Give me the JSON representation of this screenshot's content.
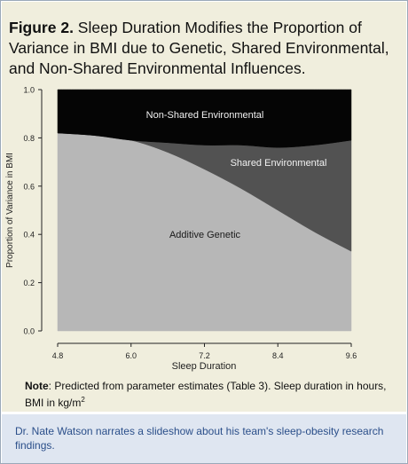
{
  "figure": {
    "title_lead": "Figure 2.",
    "title_rest": " Sleep Duration Modifies the Proportion of Variance in BMI due to Genetic, Shared Environmental, and Non-Shared Environmental Influences."
  },
  "note": {
    "label": "Note",
    "text": ": Predicted from parameter estimates (Table 3). Sleep duration in hours, BMI in kg/m",
    "superscript": "2"
  },
  "caption": {
    "text": "Dr. Nate Watson narrates a slideshow about his team's sleep-obesity research findings."
  },
  "chart_data": {
    "type": "area",
    "stacked": true,
    "xlabel": "Sleep Duration",
    "ylabel": "Proportion of Variance in BMI",
    "xlim": [
      4.8,
      9.6
    ],
    "ylim": [
      0,
      1
    ],
    "x_ticks": [
      "4.8",
      "6.0",
      "7.2",
      "8.4",
      "9.6"
    ],
    "y_ticks": [
      "0.0",
      "0.2",
      "0.4",
      "0.6",
      "0.8",
      "1.0"
    ],
    "x": [
      4.8,
      5.4,
      6.0,
      6.6,
      7.2,
      7.8,
      8.4,
      9.0,
      9.6
    ],
    "series": [
      {
        "name": "Additive Genetic",
        "color": "#b7b7b7",
        "values": [
          0.82,
          0.81,
          0.79,
          0.74,
          0.67,
          0.59,
          0.5,
          0.41,
          0.33
        ]
      },
      {
        "name": "Shared Environmental",
        "color": "#525252",
        "values": [
          0.0,
          0.0,
          0.0,
          0.04,
          0.1,
          0.18,
          0.26,
          0.36,
          0.46
        ]
      },
      {
        "name": "Non-Shared Environmental",
        "color": "#050505",
        "values": [
          0.18,
          0.19,
          0.21,
          0.22,
          0.23,
          0.23,
          0.24,
          0.23,
          0.21
        ]
      }
    ],
    "grid": false
  }
}
